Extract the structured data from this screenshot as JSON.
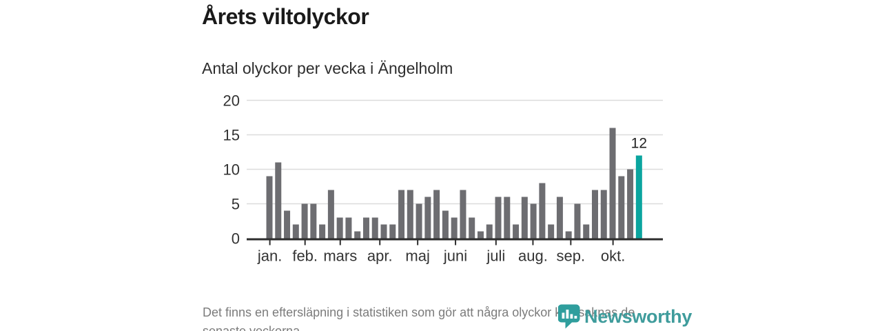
{
  "header": {
    "title": "Årets viltolyckor",
    "subtitle": "Antal olyckor per vecka i Ängelholm"
  },
  "footnote": {
    "line1": "Det finns en eftersläpning i statistiken som gör att några olyckor kan saknas de",
    "line2": "senaste veckorna."
  },
  "branding": {
    "logo_text": "Newsworthy",
    "logo_color": "#3f9c9c",
    "logo_icon": "map-pin-with-bars"
  },
  "chart_data": {
    "type": "bar",
    "title": "Årets viltolyckor",
    "subtitle": "Antal olyckor per vecka i Ängelholm",
    "x_unit": "week of year (1–43)",
    "values": [
      9,
      11,
      4,
      2,
      5,
      5,
      2,
      7,
      3,
      3,
      1,
      3,
      3,
      2,
      2,
      7,
      7,
      5,
      6,
      7,
      4,
      3,
      7,
      3,
      1,
      2,
      6,
      6,
      2,
      6,
      5,
      8,
      2,
      6,
      1,
      5,
      2,
      7,
      7,
      16,
      9,
      10,
      12
    ],
    "week_count": 43,
    "ylim": [
      0,
      20
    ],
    "y_ticks": [
      0,
      5,
      10,
      15,
      20
    ],
    "month_ticks": [
      {
        "label": "jan.",
        "week_boundary": 0.4
      },
      {
        "label": "feb.",
        "week_boundary": 4.4
      },
      {
        "label": "mars",
        "week_boundary": 8.4
      },
      {
        "label": "apr.",
        "week_boundary": 12.9
      },
      {
        "label": "maj",
        "week_boundary": 17.2
      },
      {
        "label": "juni",
        "week_boundary": 21.5
      },
      {
        "label": "juli",
        "week_boundary": 26.1
      },
      {
        "label": "aug.",
        "week_boundary": 30.3
      },
      {
        "label": "sep.",
        "week_boundary": 34.6
      },
      {
        "label": "okt.",
        "week_boundary": 39.4
      }
    ],
    "highlight_last_bar": true,
    "highlight_value_label": "12",
    "grid": true,
    "legend": false,
    "colors": {
      "bar": "#6d6d71",
      "highlight": "#0ba59f",
      "grid": "#dcdcdc",
      "axis": "#2d2d2d",
      "tick_text": "#333333",
      "value_label": "#222222"
    }
  }
}
